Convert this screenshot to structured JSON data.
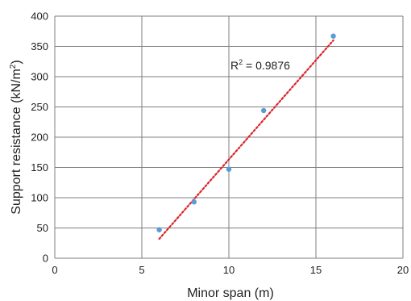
{
  "chart_data": {
    "type": "scatter",
    "title": "",
    "xlabel": "Minor span (m)",
    "ylabel_main": "Support resistance (kN/m",
    "ylabel_sup": "2",
    "ylabel_close": ")",
    "xlim": [
      0,
      20
    ],
    "ylim": [
      0,
      400
    ],
    "xticks": [
      0,
      5,
      10,
      15,
      20
    ],
    "yticks": [
      0,
      50,
      100,
      150,
      200,
      250,
      300,
      350,
      400
    ],
    "grid": true,
    "legend": "none",
    "series": [
      {
        "values": [
          {
            "x": 6,
            "y": 47
          },
          {
            "x": 8,
            "y": 93
          },
          {
            "x": 10,
            "y": 147
          },
          {
            "x": 12,
            "y": 244
          },
          {
            "x": 16,
            "y": 367
          }
        ]
      }
    ],
    "trendline": {
      "type": "linear",
      "x_range": [
        6,
        16
      ],
      "y_at_start": 32,
      "y_at_end": 360
    },
    "annotation": {
      "r_prefix": "R",
      "r_sup": "2",
      "r_rest": " = 0.9876"
    },
    "colors": {
      "marker": "#5b9bd5",
      "trendline": "#d9262b",
      "grid": "#7f7f7f"
    }
  }
}
